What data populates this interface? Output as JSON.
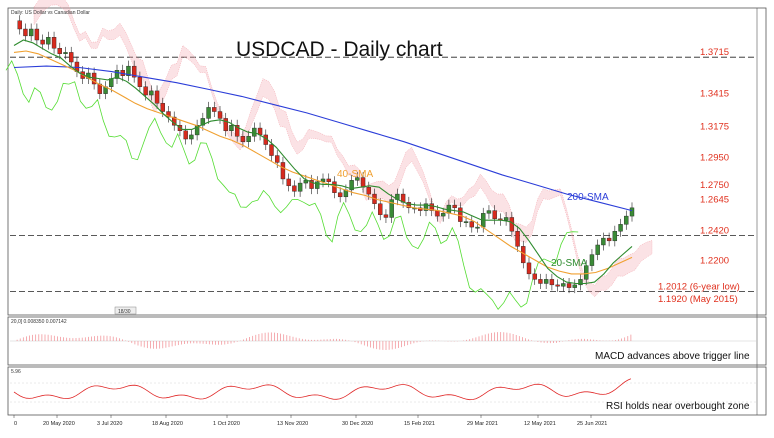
{
  "header": {
    "symbol_label": "Daily:  US Dollar vs Canadian Dollar",
    "macd_label": "20,0] 0.008350 0.007142",
    "rsi_label": "5.96",
    "chart_title": "USDCAD - Daily chart",
    "date_box": "18/30"
  },
  "chart_data": {
    "type": "line",
    "title": "USDCAD - Daily chart",
    "ylim": [
      1.195,
      1.4
    ],
    "price_levels": [
      1.3715,
      1.3415,
      1.3175,
      1.295,
      1.275,
      1.2645,
      1.242,
      1.22,
      1.2012,
      1.192
    ],
    "level_labels": [
      "1.3715",
      "1.3415",
      "1.3175",
      "1.2950",
      "1.2750",
      "1.2645",
      "1.2420",
      "1.2200",
      "1.2012 (6-year low)",
      "1.1920 (May 2015)"
    ],
    "dashed_levels": [
      1.3715,
      1.242,
      1.2012
    ],
    "x_tick_labels": [
      "0",
      "20 May 2020",
      "3 Jul 2020",
      "18 Aug 2020",
      "1 Oct 2020",
      "13 Nov 2020",
      "30 Dec 2020",
      "15 Feb 2021",
      "29 Mar 2021",
      "12 May 2021",
      "25 Jun 2021"
    ],
    "close": [
      1.398,
      1.392,
      1.387,
      1.392,
      1.384,
      1.381,
      1.386,
      1.378,
      1.374,
      1.375,
      1.368,
      1.361,
      1.356,
      1.36,
      1.352,
      1.345,
      1.35,
      1.356,
      1.362,
      1.358,
      1.365,
      1.357,
      1.35,
      1.344,
      1.347,
      1.338,
      1.332,
      1.328,
      1.322,
      1.318,
      1.312,
      1.315,
      1.322,
      1.327,
      1.335,
      1.332,
      1.327,
      1.318,
      1.322,
      1.314,
      1.31,
      1.314,
      1.32,
      1.315,
      1.308,
      1.3,
      1.295,
      1.283,
      1.278,
      1.274,
      1.28,
      1.282,
      1.276,
      1.281,
      1.283,
      1.281,
      1.273,
      1.27,
      1.275,
      1.282,
      1.284,
      1.277,
      1.272,
      1.265,
      1.257,
      1.255,
      1.268,
      1.272,
      1.266,
      1.262,
      1.262,
      1.26,
      1.265,
      1.26,
      1.256,
      1.258,
      1.264,
      1.262,
      1.252,
      1.252,
      1.248,
      1.248,
      1.258,
      1.26,
      1.254,
      1.253,
      1.255,
      1.245,
      1.234,
      1.222,
      1.214,
      1.21,
      1.207,
      1.21,
      1.206,
      1.205,
      1.207,
      1.204,
      1.206,
      1.21,
      1.22,
      1.228,
      1.235,
      1.24,
      1.238,
      1.245,
      1.25,
      1.256,
      1.262
    ],
    "sma20": [
      1.38,
      1.384,
      1.382,
      1.378,
      1.374,
      1.371,
      1.365,
      1.36,
      1.357,
      1.356,
      1.355,
      1.357,
      1.354,
      1.349,
      1.343,
      1.337,
      1.33,
      1.324,
      1.319,
      1.319,
      1.322,
      1.325,
      1.326,
      1.324,
      1.32,
      1.317,
      1.316,
      1.312,
      1.306,
      1.298,
      1.29,
      1.283,
      1.28,
      1.279,
      1.279,
      1.278,
      1.276,
      1.277,
      1.278,
      1.277,
      1.272,
      1.268,
      1.265,
      1.264,
      1.264,
      1.263,
      1.261,
      1.26,
      1.259,
      1.256,
      1.253,
      1.253,
      1.253,
      1.252,
      1.247,
      1.238,
      1.228,
      1.218,
      1.212,
      1.208,
      1.207,
      1.207,
      1.208,
      1.214,
      1.222,
      1.228,
      1.234
    ],
    "sma40": [
      1.375,
      1.376,
      1.374,
      1.37,
      1.366,
      1.362,
      1.357,
      1.352,
      1.348,
      1.343,
      1.338,
      1.334,
      1.331,
      1.328,
      1.325,
      1.322,
      1.318,
      1.314,
      1.311,
      1.307,
      1.302,
      1.297,
      1.292,
      1.288,
      1.285,
      1.282,
      1.279,
      1.276,
      1.273,
      1.271,
      1.268,
      1.266,
      1.264,
      1.262,
      1.261,
      1.26,
      1.258,
      1.256,
      1.252,
      1.246,
      1.24,
      1.234,
      1.229,
      1.224,
      1.219,
      1.216,
      1.214,
      1.214,
      1.215,
      1.218,
      1.222,
      1.226
    ],
    "sma200": [
      1.364,
      1.365,
      1.364,
      1.361,
      1.357,
      1.353,
      1.348,
      1.343,
      1.337,
      1.331,
      1.324,
      1.317,
      1.31,
      1.302,
      1.294,
      1.286,
      1.279,
      1.272,
      1.266,
      1.26
    ],
    "annotations": [
      "40-SMA",
      "200-SMA",
      "20-SMA"
    ],
    "macd_note": "MACD advances above trigger line",
    "rsi_note": "RSI holds near overbought zone",
    "colors": {
      "candle_up": "#3a8a36",
      "candle_down": "#d62a1e",
      "sma20": "#2e8b2e",
      "sma40": "#f0a030",
      "sma200": "#2b3dd8",
      "ichimoku_cloud": "#f3a0a8",
      "chikou": "#55dd33",
      "level_text": "#e0301e",
      "macd_hist": "#f08a90",
      "rsi_line": "#e02828"
    }
  }
}
